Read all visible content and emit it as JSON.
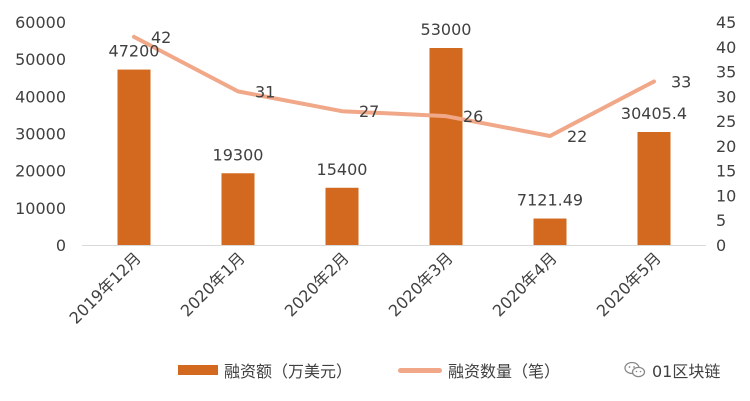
{
  "chart_data": {
    "type": "bar",
    "categories": [
      "2019年12月",
      "2020年1月",
      "2020年2月",
      "2020年3月",
      "2020年4月",
      "2020年5月"
    ],
    "series": [
      {
        "name": "融资额（万美元）",
        "kind": "bar",
        "axis": "left",
        "values": [
          47200,
          19300,
          15400,
          53000,
          7121.49,
          30405.4
        ],
        "labels": [
          "47200",
          "19300",
          "15400",
          "53000",
          "7121.49",
          "30405.4"
        ],
        "color": "#D2691E"
      },
      {
        "name": "融资数量（笔）",
        "kind": "line",
        "axis": "right",
        "values": [
          42,
          31,
          27,
          26,
          22,
          33
        ],
        "labels": [
          "42",
          "31",
          "27",
          "26",
          "22",
          "33"
        ],
        "color": "#F0A888"
      }
    ],
    "ylim_left": [
      0,
      60000
    ],
    "yticks_left": [
      "0",
      "10000",
      "20000",
      "30000",
      "40000",
      "50000",
      "60000"
    ],
    "ylim_right": [
      0,
      45
    ],
    "yticks_right": [
      "0",
      "5",
      "10",
      "15",
      "20",
      "25",
      "30",
      "35",
      "40",
      "45"
    ],
    "legend_position": "bottom",
    "grid": false
  },
  "watermark": {
    "text": "01区块链",
    "icon": "wechat-icon"
  }
}
